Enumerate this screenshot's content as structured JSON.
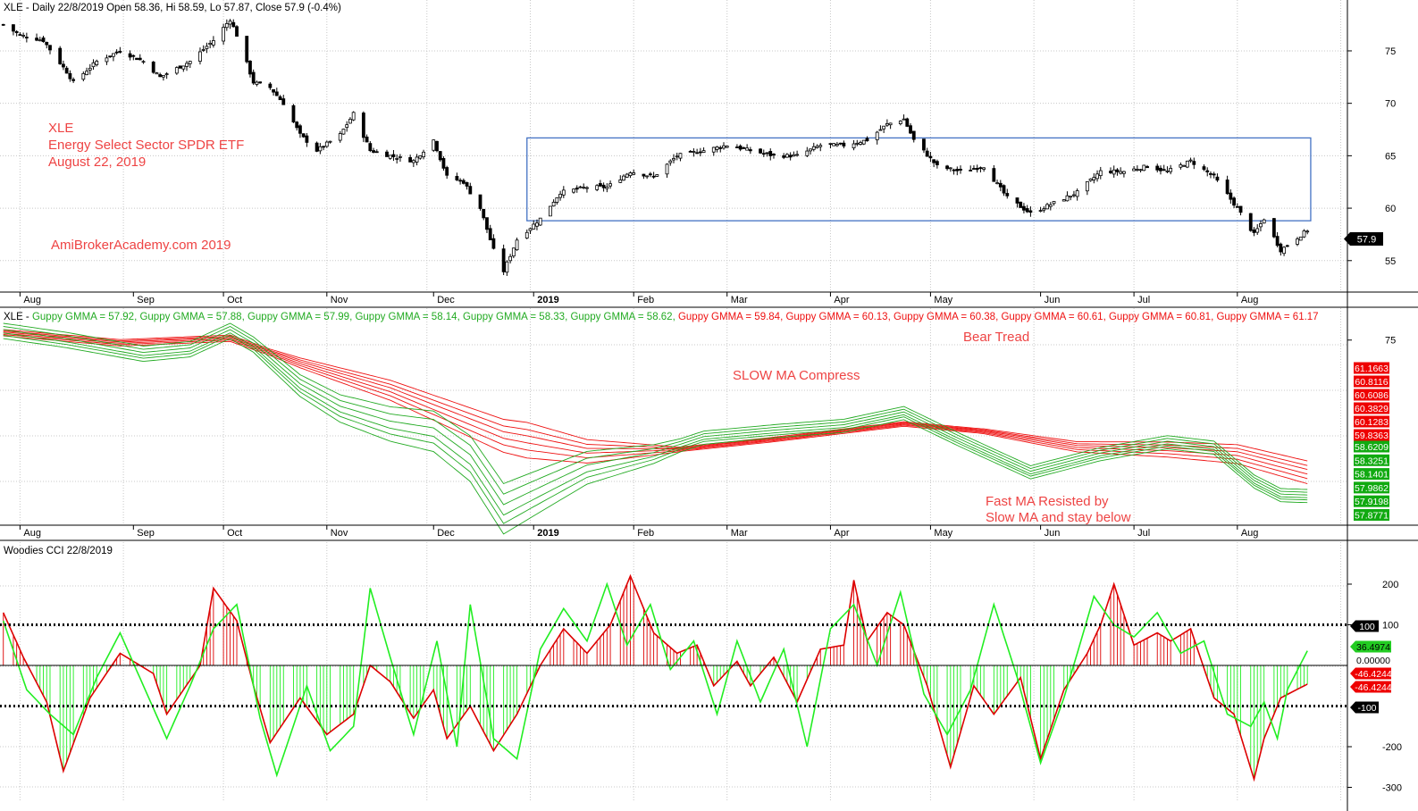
{
  "colors": {
    "grid": "#c8c8c8",
    "candle": "#000000",
    "box": "#4472c4",
    "annotation": "#ee4444",
    "fast": "#22aa22",
    "slow": "#ee1111",
    "cci_red": "#dd0000",
    "cci_green": "#22ee22",
    "price_badge_bg": "#000000",
    "badge_text": "#ffffff"
  },
  "months": [
    "Aug",
    "Sep",
    "Oct",
    "Nov",
    "Dec",
    "2019",
    "Feb",
    "Mar",
    "Apr",
    "May",
    "Jun",
    "Jul",
    "Aug"
  ],
  "chart_data": [
    {
      "type": "candlestick",
      "title": "XLE - Daily 22/8/2019 Open 58.36, Hi 58.59, Lo 57.87, Close 57.9 (-0.4%)",
      "ylim": [
        52,
        79
      ],
      "y_ticks": [
        55,
        60,
        65,
        70,
        75
      ],
      "last_close": 57.9,
      "last_close_label": "57.9",
      "close_path": [
        [
          "2018-07-27",
          77.5
        ],
        [
          "2018-08-01",
          76.5
        ],
        [
          "2018-08-08",
          76
        ],
        [
          "2018-08-15",
          73
        ],
        [
          "2018-08-17",
          72
        ],
        [
          "2018-08-24",
          74
        ],
        [
          "2018-08-31",
          75
        ],
        [
          "2018-09-07",
          74
        ],
        [
          "2018-09-12",
          72.5
        ],
        [
          "2018-09-21",
          74
        ],
        [
          "2018-09-28",
          76
        ],
        [
          "2018-10-03",
          78
        ],
        [
          "2018-10-05",
          76.5
        ],
        [
          "2018-10-10",
          72
        ],
        [
          "2018-10-15",
          71.5
        ],
        [
          "2018-10-19",
          70
        ],
        [
          "2018-10-24",
          67
        ],
        [
          "2018-10-29",
          65.5
        ],
        [
          "2018-11-05",
          67
        ],
        [
          "2018-11-09",
          69
        ],
        [
          "2018-11-14",
          65.5
        ],
        [
          "2018-11-20",
          65
        ],
        [
          "2018-11-27",
          64.5
        ],
        [
          "2018-12-03",
          66.5
        ],
        [
          "2018-12-07",
          63
        ],
        [
          "2018-12-12",
          62.5
        ],
        [
          "2018-12-17",
          60
        ],
        [
          "2018-12-21",
          56
        ],
        [
          "2018-12-24",
          54
        ],
        [
          "2018-12-28",
          57
        ],
        [
          "2019-01-04",
          59
        ],
        [
          "2019-01-10",
          61.5
        ],
        [
          "2019-01-18",
          62
        ],
        [
          "2019-01-24",
          62
        ],
        [
          "2019-01-31",
          63.5
        ],
        [
          "2019-02-07",
          63
        ],
        [
          "2019-02-14",
          65
        ],
        [
          "2019-02-22",
          65.5
        ],
        [
          "2019-03-01",
          66
        ],
        [
          "2019-03-08",
          65.5
        ],
        [
          "2019-03-15",
          65
        ],
        [
          "2019-03-22",
          65
        ],
        [
          "2019-03-29",
          66
        ],
        [
          "2019-04-05",
          66
        ],
        [
          "2019-04-12",
          66.5
        ],
        [
          "2019-04-18",
          68
        ],
        [
          "2019-04-23",
          68.5
        ],
        [
          "2019-04-26",
          66.5
        ],
        [
          "2019-05-03",
          64
        ],
        [
          "2019-05-10",
          63.5
        ],
        [
          "2019-05-17",
          64
        ],
        [
          "2019-05-24",
          61
        ],
        [
          "2019-05-31",
          59.5
        ],
        [
          "2019-06-07",
          60.5
        ],
        [
          "2019-06-14",
          61.5
        ],
        [
          "2019-06-21",
          63.5
        ],
        [
          "2019-06-28",
          63.5
        ],
        [
          "2019-07-05",
          64
        ],
        [
          "2019-07-11",
          63.5
        ],
        [
          "2019-07-18",
          64.5
        ],
        [
          "2019-07-25",
          63
        ],
        [
          "2019-08-01",
          60
        ],
        [
          "2019-08-06",
          57.5
        ],
        [
          "2019-08-09",
          59
        ],
        [
          "2019-08-14",
          56
        ],
        [
          "2019-08-22",
          57.9
        ]
      ],
      "annotation_box": {
        "x0": "2018-12-31",
        "x1": "2019-08-23",
        "y0": 58.8,
        "y1": 66.7
      }
    },
    {
      "type": "line",
      "title": "XLE - ",
      "series_label_fmt": "Guppy GMMA = ",
      "fast_values": [
        "57.92",
        "57.88",
        "57.99",
        "58.14",
        "58.33",
        "58.62"
      ],
      "slow_values": [
        "59.84",
        "60.13",
        "60.38",
        "60.61",
        "60.81",
        "61.17"
      ],
      "ylim": [
        52,
        79
      ],
      "y_ticks": [
        75
      ],
      "slow_badges": [
        "61.1663",
        "60.8116",
        "60.6086",
        "60.3829",
        "60.1283",
        "59.8363"
      ],
      "fast_badges": [
        "58.6209",
        "58.3251",
        "58.1401",
        "57.9862",
        "57.9198",
        "57.8771"
      ],
      "fast_center": [
        [
          "2018-07-27",
          76
        ],
        [
          "2018-08-15",
          75
        ],
        [
          "2018-09-07",
          73.5
        ],
        [
          "2018-09-21",
          74
        ],
        [
          "2018-10-03",
          76
        ],
        [
          "2018-10-10",
          74.5
        ],
        [
          "2018-10-24",
          70
        ],
        [
          "2018-11-05",
          67.5
        ],
        [
          "2018-11-20",
          65.8
        ],
        [
          "2018-12-03",
          65
        ],
        [
          "2018-12-14",
          62
        ],
        [
          "2018-12-24",
          56.5
        ],
        [
          "2019-01-04",
          58.5
        ],
        [
          "2019-01-18",
          61
        ],
        [
          "2019-02-07",
          62.5
        ],
        [
          "2019-02-22",
          64.3
        ],
        [
          "2019-03-15",
          65
        ],
        [
          "2019-04-05",
          65.6
        ],
        [
          "2019-04-23",
          67
        ],
        [
          "2019-05-10",
          64
        ],
        [
          "2019-05-31",
          60.5
        ],
        [
          "2019-06-21",
          62.5
        ],
        [
          "2019-07-11",
          63.8
        ],
        [
          "2019-07-25",
          63.2
        ],
        [
          "2019-08-06",
          59.5
        ],
        [
          "2019-08-14",
          58
        ],
        [
          "2019-08-22",
          57.9
        ]
      ],
      "slow_center": [
        [
          "2018-07-27",
          75.8
        ],
        [
          "2018-08-31",
          74.7
        ],
        [
          "2018-10-03",
          75.2
        ],
        [
          "2018-10-24",
          72.5
        ],
        [
          "2018-11-20",
          69.5
        ],
        [
          "2018-12-24",
          64.5
        ],
        [
          "2019-01-18",
          62.8
        ],
        [
          "2019-02-14",
          63
        ],
        [
          "2019-03-15",
          64.1
        ],
        [
          "2019-04-23",
          65.8
        ],
        [
          "2019-05-17",
          65
        ],
        [
          "2019-06-14",
          63.3
        ],
        [
          "2019-07-11",
          63
        ],
        [
          "2019-08-01",
          62.5
        ],
        [
          "2019-08-22",
          60.5
        ]
      ],
      "annotations": [
        "Bear Tread",
        "SLOW MA Compress",
        "Fast MA Resisted by",
        "Slow MA and stay below"
      ]
    },
    {
      "type": "line",
      "title": "Woodies CCI  22/8/2019",
      "ylim": [
        -310,
        270
      ],
      "y_ticks": [
        200,
        100,
        -200,
        -300
      ],
      "levels": [
        100,
        0,
        -100
      ],
      "badges": [
        "100",
        "36.4974",
        "0.00000",
        "-46.4244",
        "-46.4244",
        "-100"
      ],
      "cci_red": [
        [
          "2018-07-27",
          130
        ],
        [
          "2018-08-02",
          20
        ],
        [
          "2018-08-09",
          -90
        ],
        [
          "2018-08-14",
          -260
        ],
        [
          "2018-08-22",
          -80
        ],
        [
          "2018-08-31",
          30
        ],
        [
          "2018-09-10",
          -20
        ],
        [
          "2018-09-14",
          -120
        ],
        [
          "2018-09-24",
          0
        ],
        [
          "2018-09-28",
          190
        ],
        [
          "2018-10-05",
          110
        ],
        [
          "2018-10-10",
          -50
        ],
        [
          "2018-10-15",
          -190
        ],
        [
          "2018-10-24",
          -80
        ],
        [
          "2018-11-01",
          -170
        ],
        [
          "2018-11-09",
          -120
        ],
        [
          "2018-11-14",
          0
        ],
        [
          "2018-11-20",
          -40
        ],
        [
          "2018-11-27",
          -130
        ],
        [
          "2018-12-03",
          -60
        ],
        [
          "2018-12-07",
          -180
        ],
        [
          "2018-12-14",
          -100
        ],
        [
          "2018-12-21",
          -210
        ],
        [
          "2018-12-28",
          -120
        ],
        [
          "2019-01-04",
          0
        ],
        [
          "2019-01-11",
          90
        ],
        [
          "2019-01-18",
          30
        ],
        [
          "2019-01-25",
          100
        ],
        [
          "2019-01-31",
          220
        ],
        [
          "2019-02-07",
          80
        ],
        [
          "2019-02-14",
          30
        ],
        [
          "2019-02-20",
          50
        ],
        [
          "2019-02-25",
          -50
        ],
        [
          "2019-03-04",
          10
        ],
        [
          "2019-03-08",
          -50
        ],
        [
          "2019-03-15",
          20
        ],
        [
          "2019-03-22",
          -90
        ],
        [
          "2019-03-29",
          40
        ],
        [
          "2019-04-05",
          50
        ],
        [
          "2019-04-08",
          210
        ],
        [
          "2019-04-12",
          60
        ],
        [
          "2019-04-18",
          130
        ],
        [
          "2019-04-23",
          100
        ],
        [
          "2019-04-30",
          -50
        ],
        [
          "2019-05-07",
          -250
        ],
        [
          "2019-05-14",
          -50
        ],
        [
          "2019-05-20",
          -120
        ],
        [
          "2019-05-28",
          -30
        ],
        [
          "2019-06-03",
          -230
        ],
        [
          "2019-06-10",
          -60
        ],
        [
          "2019-06-17",
          30
        ],
        [
          "2019-06-21",
          100
        ],
        [
          "2019-06-25",
          200
        ],
        [
          "2019-07-01",
          50
        ],
        [
          "2019-07-08",
          80
        ],
        [
          "2019-07-12",
          60
        ],
        [
          "2019-07-18",
          90
        ],
        [
          "2019-07-25",
          -80
        ],
        [
          "2019-07-31",
          -120
        ],
        [
          "2019-08-06",
          -280
        ],
        [
          "2019-08-09",
          -180
        ],
        [
          "2019-08-14",
          -80
        ],
        [
          "2019-08-22",
          -46
        ]
      ],
      "cci_green": [
        [
          "2018-07-27",
          110
        ],
        [
          "2018-08-03",
          -60
        ],
        [
          "2018-08-10",
          -120
        ],
        [
          "2018-08-17",
          -170
        ],
        [
          "2018-08-24",
          -30
        ],
        [
          "2018-08-31",
          80
        ],
        [
          "2018-09-07",
          -50
        ],
        [
          "2018-09-14",
          -180
        ],
        [
          "2018-09-21",
          -50
        ],
        [
          "2018-09-28",
          90
        ],
        [
          "2018-10-05",
          150
        ],
        [
          "2018-10-12",
          -130
        ],
        [
          "2018-10-17",
          -270
        ],
        [
          "2018-10-26",
          -50
        ],
        [
          "2018-11-02",
          -210
        ],
        [
          "2018-11-09",
          -150
        ],
        [
          "2018-11-14",
          190
        ],
        [
          "2018-11-20",
          20
        ],
        [
          "2018-11-27",
          -170
        ],
        [
          "2018-12-04",
          60
        ],
        [
          "2018-12-10",
          -200
        ],
        [
          "2018-12-14",
          150
        ],
        [
          "2018-12-21",
          -180
        ],
        [
          "2018-12-28",
          -230
        ],
        [
          "2019-01-04",
          40
        ],
        [
          "2019-01-11",
          140
        ],
        [
          "2019-01-18",
          60
        ],
        [
          "2019-01-24",
          200
        ],
        [
          "2019-01-30",
          50
        ],
        [
          "2019-02-06",
          150
        ],
        [
          "2019-02-12",
          -10
        ],
        [
          "2019-02-19",
          60
        ],
        [
          "2019-02-26",
          -120
        ],
        [
          "2019-03-04",
          60
        ],
        [
          "2019-03-11",
          -90
        ],
        [
          "2019-03-18",
          40
        ],
        [
          "2019-03-25",
          -200
        ],
        [
          "2019-04-01",
          90
        ],
        [
          "2019-04-08",
          150
        ],
        [
          "2019-04-15",
          0
        ],
        [
          "2019-04-22",
          180
        ],
        [
          "2019-04-29",
          -70
        ],
        [
          "2019-05-06",
          -170
        ],
        [
          "2019-05-13",
          -60
        ],
        [
          "2019-05-20",
          150
        ],
        [
          "2019-05-27",
          -30
        ],
        [
          "2019-06-03",
          -240
        ],
        [
          "2019-06-10",
          -80
        ],
        [
          "2019-06-14",
          30
        ],
        [
          "2019-06-19",
          170
        ],
        [
          "2019-06-25",
          100
        ],
        [
          "2019-07-01",
          70
        ],
        [
          "2019-07-08",
          130
        ],
        [
          "2019-07-15",
          30
        ],
        [
          "2019-07-22",
          60
        ],
        [
          "2019-07-29",
          -120
        ],
        [
          "2019-08-05",
          -150
        ],
        [
          "2019-08-09",
          -90
        ],
        [
          "2019-08-13",
          -180
        ],
        [
          "2019-08-16",
          -60
        ],
        [
          "2019-08-22",
          36
        ]
      ]
    }
  ],
  "panel1": {
    "header": "XLE - Daily 22/8/2019 Open 58.36, Hi 58.59, Lo 57.87, Close 57.9 (-0.4%)",
    "title_xle": "XLE",
    "title_name": "Energy Select Sector SPDR ETF",
    "title_date": "August 22, 2019",
    "watermark": "AmiBrokerAcademy.com  2019"
  },
  "panel2": {
    "annotation_bear": "Bear Tread",
    "annotation_slow": "SLOW MA Compress",
    "annotation_fast1": "Fast MA Resisted by",
    "annotation_fast2": "Slow MA and stay below"
  },
  "panel3": {
    "header": "Woodies CCI  22/8/2019"
  }
}
